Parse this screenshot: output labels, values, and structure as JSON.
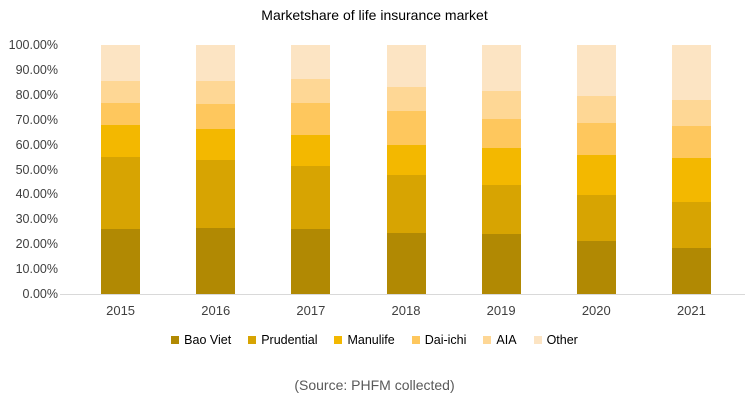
{
  "chart_data": {
    "type": "bar",
    "subtype": "100-percent-stacked-column",
    "title": "Marketshare of life insurance market",
    "categories": [
      "2015",
      "2016",
      "2017",
      "2018",
      "2019",
      "2020",
      "2021"
    ],
    "series": [
      {
        "name": "Bao Viet",
        "color": "#B18903",
        "values": [
          26.0,
          26.4,
          26.2,
          24.4,
          24.2,
          21.2,
          18.3
        ]
      },
      {
        "name": "Prudential",
        "color": "#D7A402",
        "values": [
          29.0,
          27.5,
          25.2,
          23.2,
          19.6,
          18.6,
          18.8
        ]
      },
      {
        "name": "Manulife",
        "color": "#F3B800",
        "values": [
          12.8,
          12.5,
          12.4,
          12.3,
          14.8,
          16.1,
          17.7
        ]
      },
      {
        "name": "Dai-ichi",
        "color": "#FEC75D",
        "values": [
          9.1,
          10.1,
          13.1,
          13.4,
          11.7,
          12.6,
          12.8
        ]
      },
      {
        "name": "AIA",
        "color": "#FED795",
        "values": [
          8.7,
          9.2,
          9.4,
          9.8,
          11.2,
          11.2,
          10.4
        ]
      },
      {
        "name": "Other",
        "color": "#FCE4C3",
        "values": [
          14.4,
          14.3,
          13.7,
          16.9,
          18.5,
          20.3,
          22.0
        ]
      }
    ],
    "y_axis": {
      "min": 0,
      "max": 100,
      "step": 10,
      "tick_labels": [
        "0.00%",
        "10.00%",
        "20.00%",
        "30.00%",
        "40.00%",
        "50.00%",
        "60.00%",
        "70.00%",
        "80.00%",
        "90.00%",
        "100.00%"
      ]
    },
    "x_axis": {
      "labels": [
        "2015",
        "2016",
        "2017",
        "2018",
        "2019",
        "2020",
        "2021"
      ]
    },
    "legend": {
      "position": "bottom",
      "entries": [
        "Bao Viet",
        "Prudential",
        "Manulife",
        "Dai-ichi",
        "AIA",
        "Other"
      ]
    },
    "gridlines": false
  },
  "source_note": "(Source: PHFM collected)",
  "colors": {
    "background": "#FFFFFF",
    "axis_line": "#D9D9D9",
    "axis_text": "#3F3F3F",
    "title_text": "#000000",
    "source_text": "#595959"
  }
}
